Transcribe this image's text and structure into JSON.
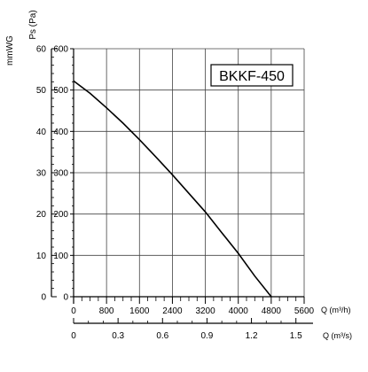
{
  "chart_data": {
    "type": "line",
    "title": "BKKF-450",
    "ylabel_ps": "Ps (Pa)",
    "ylabel_mmwg": "mmWG",
    "xlabel_m3h": "Q (m³/h)",
    "xlabel_m3s": "Q (m³/s)",
    "xlim": [
      0,
      5600
    ],
    "ylim": [
      0,
      600
    ],
    "y2lim": [
      0,
      60
    ],
    "x2lim": [
      0,
      1.5556
    ],
    "grid": true,
    "x_ticks": [
      "0",
      "800",
      "1600",
      "2400",
      "3200",
      "4000",
      "4800",
      "5600"
    ],
    "x_tick_values": [
      0,
      800,
      1600,
      2400,
      3200,
      4000,
      4800,
      5600
    ],
    "y_ticks": [
      "0",
      "100",
      "200",
      "300",
      "400",
      "500",
      "600"
    ],
    "y_tick_values": [
      0,
      100,
      200,
      300,
      400,
      500,
      600
    ],
    "y2_ticks": [
      "0",
      "10",
      "20",
      "30",
      "40",
      "50",
      "60"
    ],
    "y2_tick_values": [
      0,
      10,
      20,
      30,
      40,
      50,
      60
    ],
    "x2_ticks": [
      "0",
      "0.3",
      "0.6",
      "0.9",
      "1.2",
      "1.5"
    ],
    "x2_tick_values": [
      0,
      0.3,
      0.6,
      0.9,
      1.2,
      1.5
    ],
    "series": [
      {
        "x": [
          0,
          400,
          800,
          1200,
          1600,
          2000,
          2400,
          2800,
          3200,
          3600,
          4000,
          4400,
          4800
        ],
        "y": [
          522,
          492,
          457,
          420,
          380,
          338,
          295,
          250,
          205,
          155,
          105,
          50,
          0
        ]
      }
    ]
  }
}
